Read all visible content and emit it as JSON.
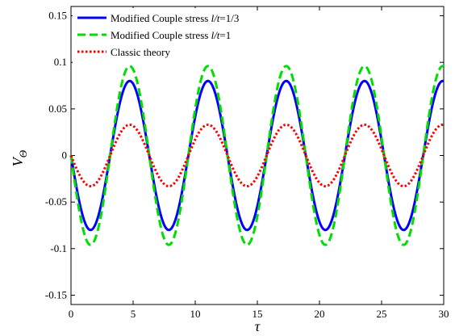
{
  "chart_data": {
    "type": "line",
    "title": "",
    "xlabel": "τ",
    "ylabel_main": "V",
    "ylabel_sub": "Θ",
    "xlim": [
      0,
      30
    ],
    "ylim": [
      -0.16,
      0.16
    ],
    "xticks": [
      0,
      5,
      10,
      15,
      20,
      25,
      30
    ],
    "xtick_labels": [
      "0",
      "5",
      "10",
      "15",
      "20",
      "25",
      "30"
    ],
    "yticks": [
      -0.15,
      -0.1,
      -0.05,
      0,
      0.05,
      0.1,
      0.15
    ],
    "ytick_labels": [
      "-0.15",
      "-0.1",
      "-0.05",
      "0",
      "0.05",
      "0.1",
      "0.15"
    ],
    "grid": false,
    "legend_position": "top-left",
    "series": [
      {
        "name_prefix": "Modified Couple stress ",
        "name_ratio": "l/t",
        "name_suffix": "=1/3",
        "color": "#0000ff",
        "dash": "solid",
        "amplitude": 0.08,
        "period": 6.3,
        "first_trough": 1.575
      },
      {
        "name_prefix": "Modified Couple stress ",
        "name_ratio": "l/t",
        "name_suffix": "=1",
        "color": "#00dd00",
        "dash": "dashed",
        "amplitude": 0.096,
        "period": 6.3,
        "first_trough": 1.575
      },
      {
        "name_prefix": "Classic theory",
        "name_ratio": "",
        "name_suffix": "",
        "color": "#ff0000",
        "dash": "dotted",
        "amplitude": 0.033,
        "period": 6.3,
        "first_trough": 1.575
      }
    ]
  }
}
